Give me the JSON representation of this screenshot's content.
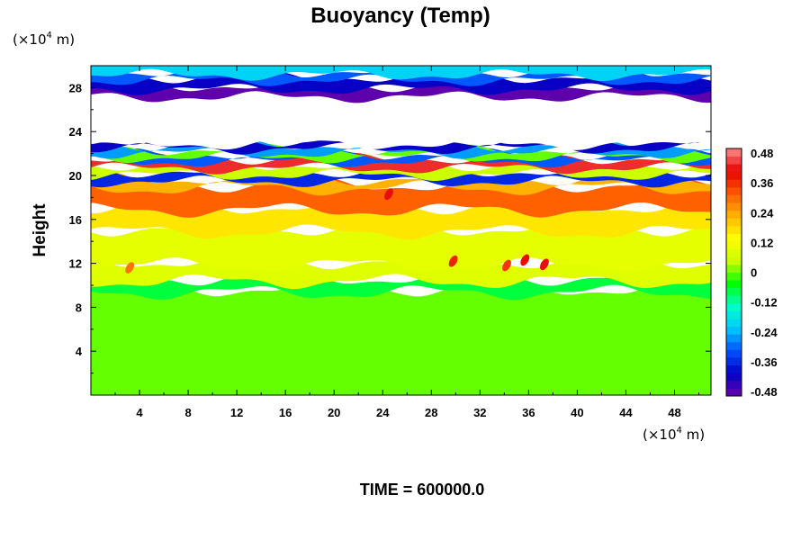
{
  "chart_data": {
    "type": "heatmap",
    "title": "Buoyancy (Temp)",
    "ylabel": "Height",
    "xlabel": "",
    "x_unit": {
      "prefix": "(×10",
      "exp": "4",
      "suffix": " m)"
    },
    "y_unit": {
      "prefix": "(×10",
      "exp": "4",
      "suffix": " m)"
    },
    "footer": "TIME = 600000.0",
    "xlim": [
      0,
      51
    ],
    "ylim": [
      0,
      30
    ],
    "xticks": [
      4,
      8,
      12,
      16,
      20,
      24,
      28,
      32,
      36,
      40,
      44,
      48
    ],
    "yticks": [
      4,
      8,
      12,
      16,
      20,
      24,
      28
    ],
    "colorbar": {
      "range": [
        -0.48,
        0.48
      ],
      "ticks": [
        "0.48",
        "0.36",
        "0.24",
        "0.12",
        "0",
        "-0.12",
        "-0.24",
        "-0.36",
        "-0.48"
      ],
      "levels": 32,
      "colors": [
        "#6a00a8",
        "#0000c8",
        "#0050ff",
        "#00c8ff",
        "#00ffc8",
        "#00ff00",
        "#c8ff00",
        "#ffff00",
        "#ffb400",
        "#ff5a00",
        "#e60000",
        "#ff8c8c"
      ]
    },
    "bands": [
      {
        "from": 0,
        "to": 9.5,
        "value": 0.0
      },
      {
        "from": 9.5,
        "to": 10.5,
        "value": -0.07
      },
      {
        "from": 10.5,
        "to": 12,
        "value": 0.08
      },
      {
        "from": 12,
        "to": 15,
        "value": 0.09
      },
      {
        "from": 15,
        "to": 17,
        "value": 0.16
      },
      {
        "from": 17,
        "to": 19,
        "value": 0.3
      },
      {
        "from": 19,
        "to": 19.6,
        "value": 0.22
      },
      {
        "from": 19.6,
        "to": 20.2,
        "value": -0.35
      },
      {
        "from": 20.2,
        "to": 20.8,
        "value": 0.05
      },
      {
        "from": 20.8,
        "to": 21.4,
        "value": 0.42
      },
      {
        "from": 21.4,
        "to": 21.8,
        "value": -0.3
      },
      {
        "from": 21.8,
        "to": 22.2,
        "value": 0.0
      },
      {
        "from": 22.2,
        "to": 22.6,
        "value": -0.25
      },
      {
        "from": 22.6,
        "to": 23.0,
        "value": -0.4
      },
      {
        "from": 23.0,
        "to": 27.3,
        "value": null
      },
      {
        "from": 27.3,
        "to": 28.0,
        "value": -0.47
      },
      {
        "from": 28.0,
        "to": 28.8,
        "value": -0.4
      },
      {
        "from": 28.8,
        "to": 29.3,
        "value": -0.3
      },
      {
        "from": 29.3,
        "to": 30,
        "value": -0.2
      }
    ],
    "hotspots": [
      {
        "x": 29.8,
        "y": 12.2,
        "value": 0.36
      },
      {
        "x": 34.2,
        "y": 11.8,
        "value": 0.34
      },
      {
        "x": 35.7,
        "y": 12.3,
        "value": 0.38
      },
      {
        "x": 37.3,
        "y": 11.9,
        "value": 0.4
      },
      {
        "x": 3.2,
        "y": 11.6,
        "value": 0.28
      },
      {
        "x": 24.5,
        "y": 18.3,
        "value": 0.4
      }
    ]
  }
}
